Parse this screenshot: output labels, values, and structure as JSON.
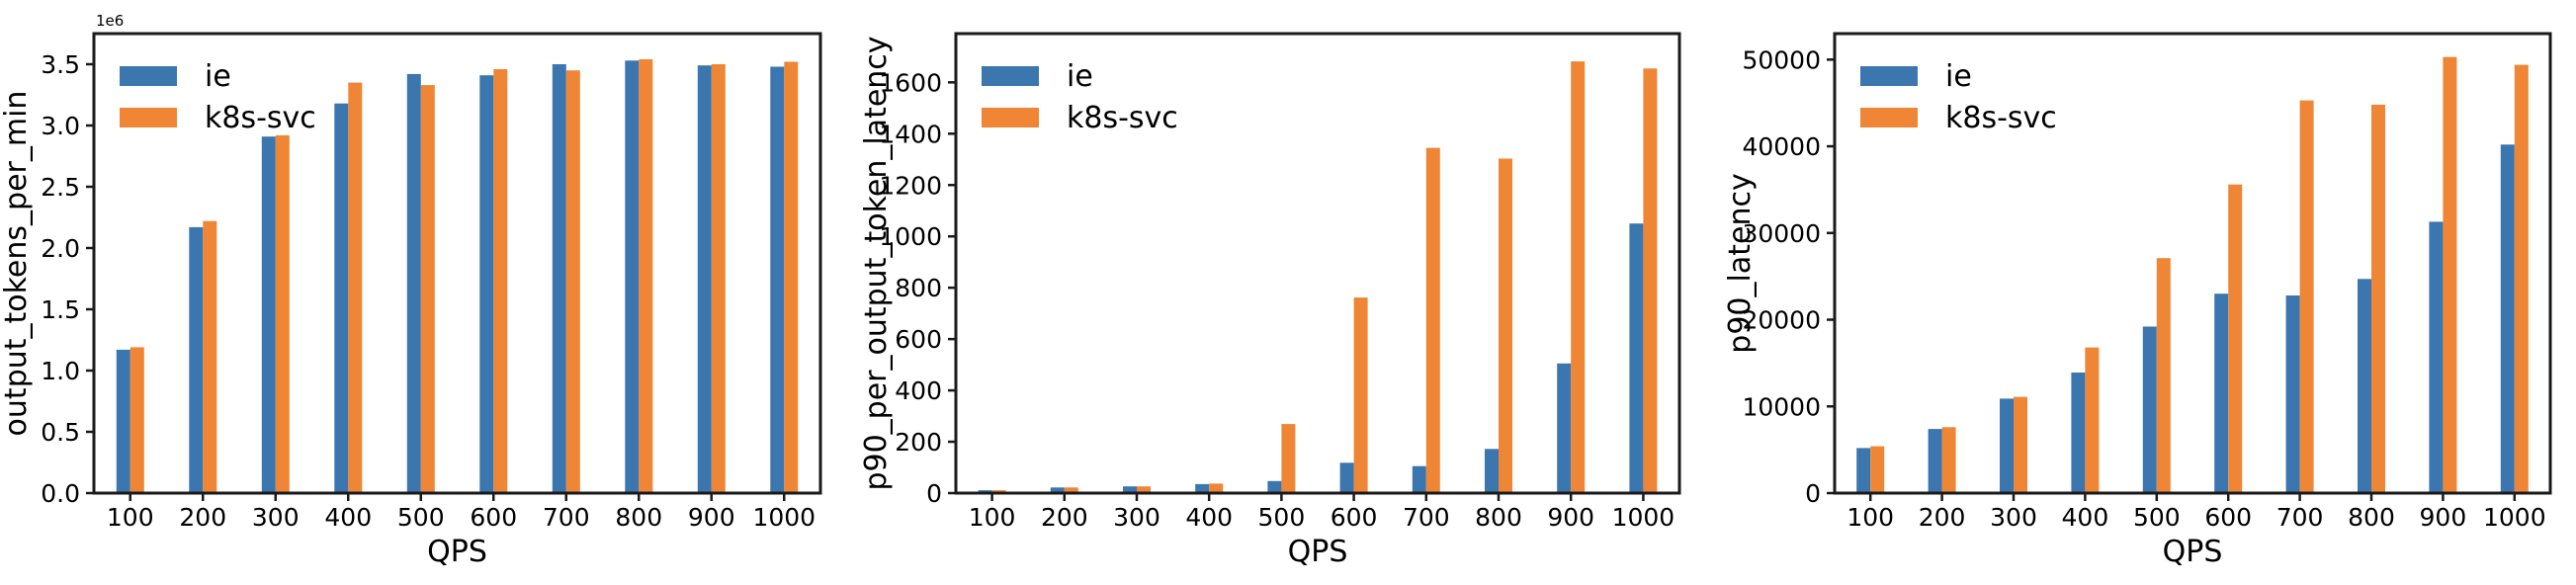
{
  "figure": {
    "background_color": "#ffffff",
    "axis_color": "#1a1a1a",
    "text_color": "#000000"
  },
  "legend": {
    "position": "upper left",
    "items": [
      {
        "label": "ie",
        "color": "#3b76af"
      },
      {
        "label": "k8s-svc",
        "color": "#ef8636"
      }
    ]
  },
  "chart_data": [
    {
      "type": "bar",
      "title": "",
      "xlabel": "QPS",
      "ylabel": "output_tokens_per_min",
      "offset_label": "1e6",
      "grid": false,
      "legend_position": "upper left",
      "categories": [
        "100",
        "200",
        "300",
        "400",
        "500",
        "600",
        "700",
        "800",
        "900",
        "1000"
      ],
      "series": [
        {
          "name": "ie",
          "color": "#3b76af",
          "values": [
            1170000,
            2170000,
            2910000,
            3180000,
            3420000,
            3410000,
            3500000,
            3530000,
            3490000,
            3480000
          ]
        },
        {
          "name": "k8s-svc",
          "color": "#ef8636",
          "values": [
            1190000,
            2220000,
            2920000,
            3350000,
            3330000,
            3460000,
            3450000,
            3540000,
            3500000,
            3520000
          ]
        }
      ],
      "ylim": [
        0,
        3750000
      ],
      "yticks": [
        {
          "value": 0,
          "label": "0.0"
        },
        {
          "value": 500000,
          "label": "0.5"
        },
        {
          "value": 1000000,
          "label": "1.0"
        },
        {
          "value": 1500000,
          "label": "1.5"
        },
        {
          "value": 2000000,
          "label": "2.0"
        },
        {
          "value": 2500000,
          "label": "2.5"
        },
        {
          "value": 3000000,
          "label": "3.0"
        },
        {
          "value": 3500000,
          "label": "3.5"
        }
      ]
    },
    {
      "type": "bar",
      "title": "",
      "xlabel": "QPS",
      "ylabel": "p90_per_output_token_latency",
      "offset_label": "",
      "grid": false,
      "legend_position": "upper left",
      "categories": [
        "100",
        "200",
        "300",
        "400",
        "500",
        "600",
        "700",
        "800",
        "900",
        "1000"
      ],
      "series": [
        {
          "name": "ie",
          "color": "#3b76af",
          "values": [
            11,
            22,
            26,
            35,
            47,
            118,
            105,
            172,
            505,
            1050
          ]
        },
        {
          "name": "k8s-svc",
          "color": "#ef8636",
          "values": [
            11,
            22,
            26,
            37,
            269,
            762,
            1345,
            1303,
            1682,
            1654
          ]
        }
      ],
      "ylim": [
        0,
        1790
      ],
      "yticks": [
        {
          "value": 0,
          "label": "0"
        },
        {
          "value": 200,
          "label": "200"
        },
        {
          "value": 400,
          "label": "400"
        },
        {
          "value": 600,
          "label": "600"
        },
        {
          "value": 800,
          "label": "800"
        },
        {
          "value": 1000,
          "label": "1000"
        },
        {
          "value": 1200,
          "label": "1200"
        },
        {
          "value": 1400,
          "label": "1400"
        },
        {
          "value": 1600,
          "label": "1600"
        }
      ]
    },
    {
      "type": "bar",
      "title": "",
      "xlabel": "QPS",
      "ylabel": "p90_latency",
      "offset_label": "",
      "grid": false,
      "legend_position": "upper left",
      "categories": [
        "100",
        "200",
        "300",
        "400",
        "500",
        "600",
        "700",
        "800",
        "900",
        "1000"
      ],
      "series": [
        {
          "name": "ie",
          "color": "#3b76af",
          "values": [
            5200,
            7400,
            10900,
            13900,
            19200,
            23000,
            22800,
            24700,
            31300,
            40200
          ]
        },
        {
          "name": "k8s-svc",
          "color": "#ef8636",
          "values": [
            5400,
            7600,
            11100,
            16800,
            27100,
            35600,
            45300,
            44800,
            50300,
            49400
          ]
        }
      ],
      "ylim": [
        0,
        53000
      ],
      "yticks": [
        {
          "value": 0,
          "label": "0"
        },
        {
          "value": 10000,
          "label": "10000"
        },
        {
          "value": 20000,
          "label": "20000"
        },
        {
          "value": 30000,
          "label": "30000"
        },
        {
          "value": 40000,
          "label": "40000"
        },
        {
          "value": 50000,
          "label": "50000"
        }
      ]
    }
  ]
}
